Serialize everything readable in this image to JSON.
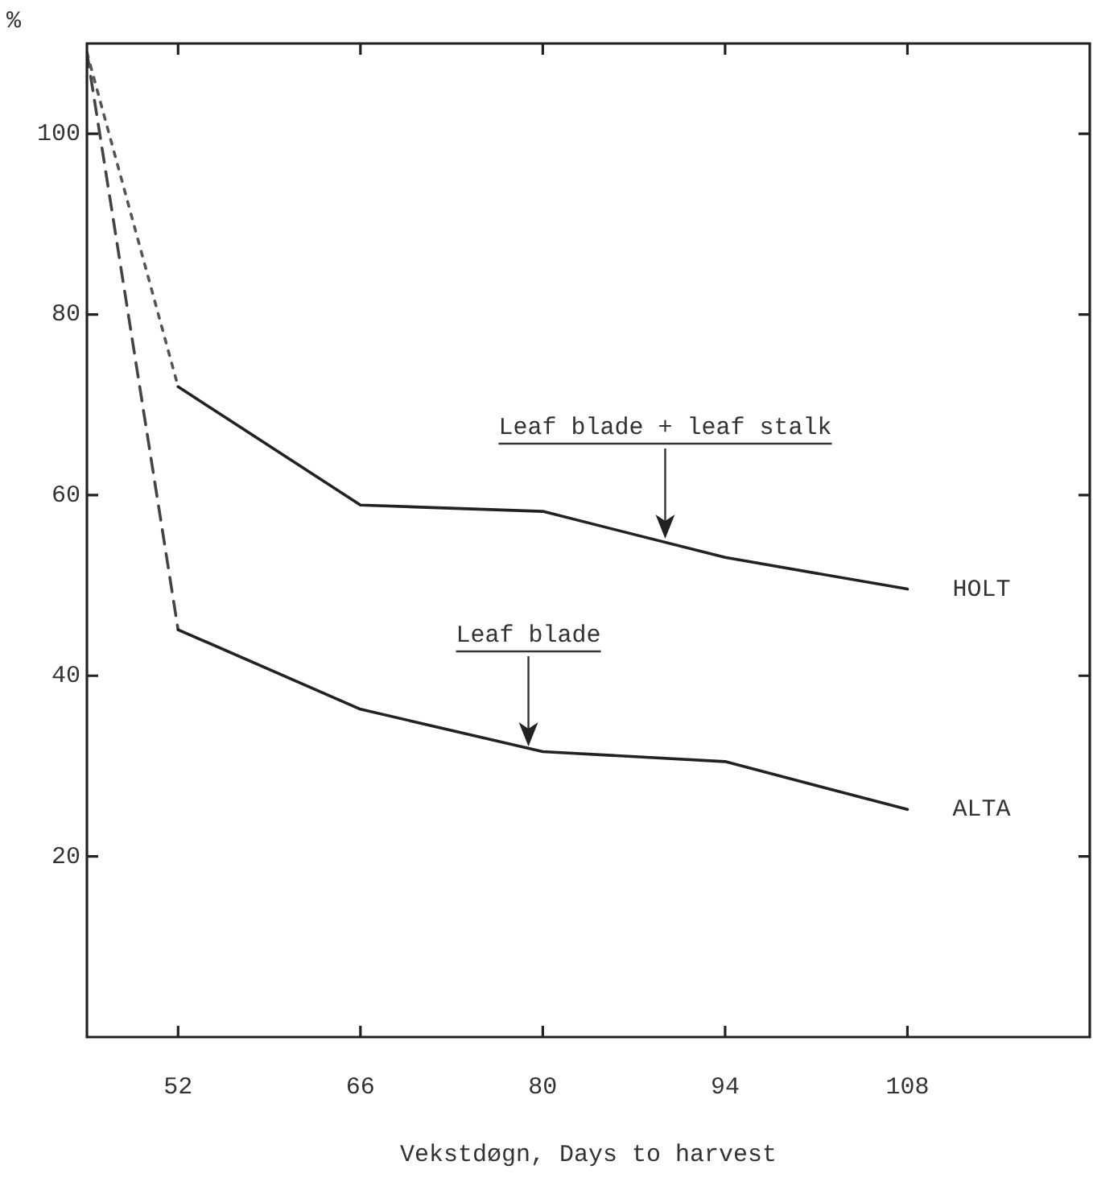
{
  "chart_data": {
    "type": "line",
    "xlabel": "Vekstdøgn, Days to harvest",
    "ylabel": "%",
    "xlim": [
      45,
      122
    ],
    "ylim": [
      0,
      110
    ],
    "xticks": [
      52,
      66,
      80,
      94,
      108
    ],
    "yticks": [
      20,
      40,
      60,
      80,
      100
    ],
    "grid": false,
    "legend": false,
    "marker": "none",
    "series": [
      {
        "name": "HOLT",
        "color": "#222222",
        "x": [
          52,
          66,
          80,
          94,
          108
        ],
        "values": [
          72.0,
          58.9,
          58.2,
          53.1,
          49.6
        ],
        "line_style": "solid"
      },
      {
        "name": "ALTA",
        "color": "#222222",
        "x": [
          52,
          66,
          80,
          94,
          108
        ],
        "values": [
          45.1,
          36.3,
          31.6,
          30.5,
          25.2
        ],
        "line_style": "solid"
      },
      {
        "color": "#555555",
        "x": [
          45,
          52
        ],
        "values": [
          109,
          72.0
        ],
        "line_style": "dotted"
      },
      {
        "color": "#444444",
        "x": [
          45,
          52
        ],
        "values": [
          109,
          45.1
        ],
        "line_style": "dashed"
      }
    ],
    "annotations": [
      {
        "text": "Leaf blade + leaf stalk",
        "x": 89.4,
        "y": 55
      },
      {
        "text": "Leaf blade",
        "x": 78.9,
        "y": 32
      }
    ]
  }
}
